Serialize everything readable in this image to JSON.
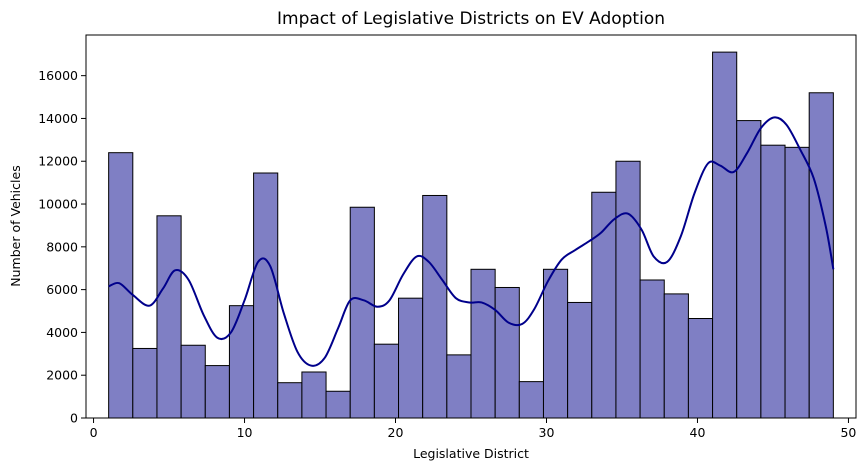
{
  "chart_data": {
    "type": "bar",
    "subtype": "histogram-with-kde",
    "title": "Impact of Legislative Districts on EV Adoption",
    "xlabel": "Legislative District",
    "ylabel": "Number of Vehicles",
    "xlim": [
      -0.5,
      50.5
    ],
    "ylim": [
      0,
      17900
    ],
    "xticks": [
      0,
      10,
      20,
      30,
      40,
      50
    ],
    "yticks": [
      0,
      2000,
      4000,
      6000,
      8000,
      10000,
      12000,
      14000,
      16000
    ],
    "bar_color": "#7f7fc4",
    "bar_edge_color": "#000000",
    "kde_color": "#00008b",
    "bins": [
      {
        "x0": 1.0,
        "x1": 2.6,
        "value": 12400
      },
      {
        "x0": 2.6,
        "x1": 4.2,
        "value": 3250
      },
      {
        "x0": 4.2,
        "x1": 5.8,
        "value": 9450
      },
      {
        "x0": 5.8,
        "x1": 7.4,
        "value": 3400
      },
      {
        "x0": 7.4,
        "x1": 9.0,
        "value": 2450
      },
      {
        "x0": 9.0,
        "x1": 10.6,
        "value": 5250
      },
      {
        "x0": 10.6,
        "x1": 12.2,
        "value": 11450
      },
      {
        "x0": 12.2,
        "x1": 13.8,
        "value": 1650
      },
      {
        "x0": 13.8,
        "x1": 15.4,
        "value": 2150
      },
      {
        "x0": 15.4,
        "x1": 17.0,
        "value": 1250
      },
      {
        "x0": 17.0,
        "x1": 18.6,
        "value": 9850
      },
      {
        "x0": 18.6,
        "x1": 20.2,
        "value": 3450
      },
      {
        "x0": 20.2,
        "x1": 21.8,
        "value": 5600
      },
      {
        "x0": 21.8,
        "x1": 23.4,
        "value": 10400
      },
      {
        "x0": 23.4,
        "x1": 25.0,
        "value": 2950
      },
      {
        "x0": 25.0,
        "x1": 26.6,
        "value": 6950
      },
      {
        "x0": 26.6,
        "x1": 28.2,
        "value": 6100
      },
      {
        "x0": 28.2,
        "x1": 29.8,
        "value": 1700
      },
      {
        "x0": 29.8,
        "x1": 31.4,
        "value": 6950
      },
      {
        "x0": 31.4,
        "x1": 33.0,
        "value": 5400
      },
      {
        "x0": 33.0,
        "x1": 34.6,
        "value": 10550
      },
      {
        "x0": 34.6,
        "x1": 36.2,
        "value": 12000
      },
      {
        "x0": 36.2,
        "x1": 37.8,
        "value": 6450
      },
      {
        "x0": 37.8,
        "x1": 39.4,
        "value": 5800
      },
      {
        "x0": 39.4,
        "x1": 41.0,
        "value": 4650
      },
      {
        "x0": 41.0,
        "x1": 42.6,
        "value": 17100
      },
      {
        "x0": 42.6,
        "x1": 44.2,
        "value": 13900
      },
      {
        "x0": 44.2,
        "x1": 45.8,
        "value": 12750
      },
      {
        "x0": 45.8,
        "x1": 47.4,
        "value": 12650
      },
      {
        "x0": 47.4,
        "x1": 49.0,
        "value": 15200
      }
    ],
    "kde_curve": {
      "x": [
        1.0,
        1.7,
        2.6,
        3.7,
        4.6,
        5.4,
        6.3,
        7.3,
        8.2,
        9.1,
        10.0,
        10.9,
        11.7,
        12.6,
        13.5,
        14.4,
        15.3,
        16.2,
        17.0,
        17.9,
        18.8,
        19.6,
        20.5,
        21.4,
        22.2,
        23.1,
        24.0,
        24.9,
        25.7,
        26.6,
        27.5,
        28.4,
        29.2,
        30.1,
        31.0,
        31.9,
        32.8,
        33.6,
        34.5,
        35.4,
        36.3,
        37.1,
        38.0,
        38.9,
        39.8,
        40.7,
        41.5,
        42.4,
        43.3,
        44.2,
        45.1,
        45.9,
        46.8,
        47.7,
        48.5,
        49.0
      ],
      "y": [
        6150,
        6300,
        5750,
        5250,
        6050,
        6900,
        6450,
        4800,
        3750,
        4000,
        5500,
        7300,
        7100,
        4900,
        3100,
        2450,
        2800,
        4200,
        5500,
        5500,
        5200,
        5500,
        6700,
        7550,
        7300,
        6450,
        5600,
        5400,
        5400,
        5050,
        4450,
        4400,
        5100,
        6400,
        7400,
        7850,
        8250,
        8650,
        9300,
        9550,
        8800,
        7550,
        7300,
        8500,
        10500,
        11900,
        11800,
        11500,
        12400,
        13550,
        14050,
        13700,
        12550,
        11200,
        8950,
        6950
      ]
    }
  }
}
